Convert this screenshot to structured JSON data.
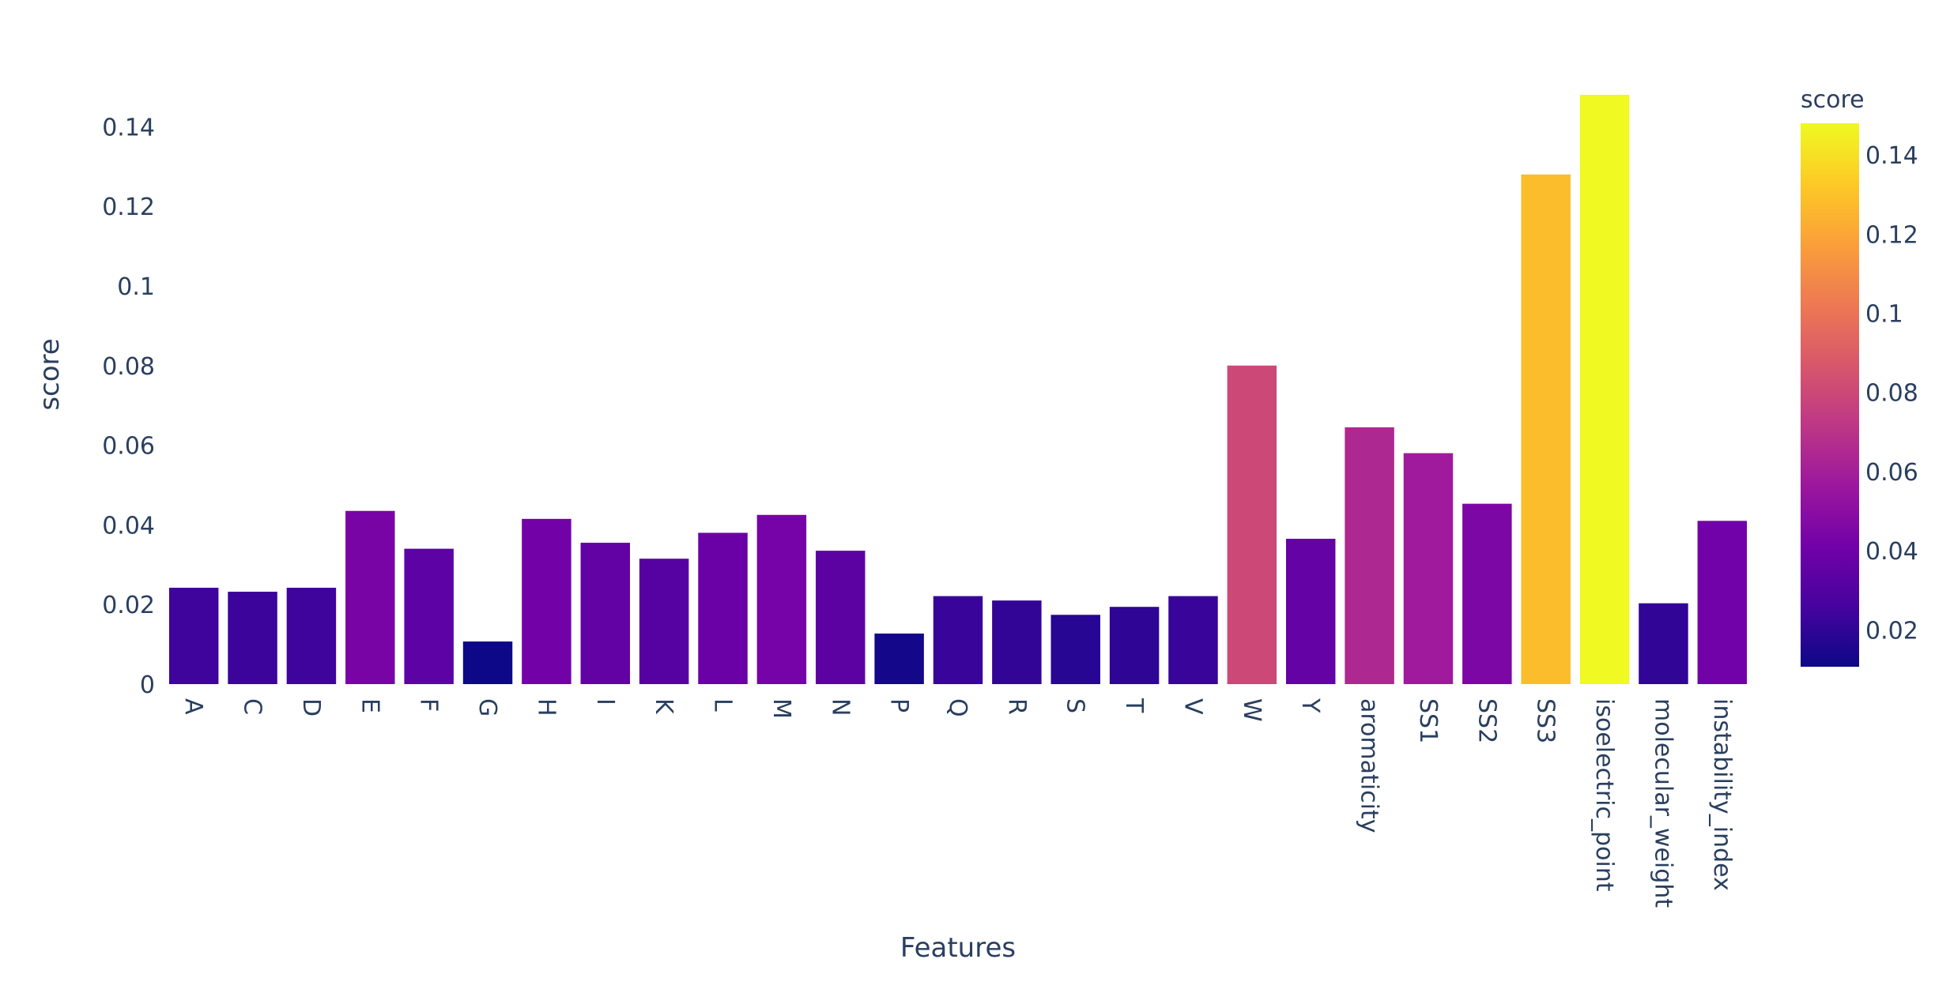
{
  "chart_data": {
    "type": "bar",
    "xlabel": "Features",
    "ylabel": "score",
    "ylim": [
      0,
      0.148
    ],
    "y_ticks": [
      0,
      0.02,
      0.04,
      0.06,
      0.08,
      0.1,
      0.12,
      0.14
    ],
    "y_tick_labels": [
      "0",
      "0.02",
      "0.04",
      "0.06",
      "0.08",
      "0.1",
      "0.12",
      "0.14"
    ],
    "grid": false,
    "categories": [
      "A",
      "C",
      "D",
      "E",
      "F",
      "G",
      "H",
      "I",
      "K",
      "L",
      "M",
      "N",
      "P",
      "Q",
      "R",
      "S",
      "T",
      "V",
      "W",
      "Y",
      "aromaticity",
      "SS1",
      "SS2",
      "SS3",
      "isoelectric_point",
      "molecular_weight",
      "instability_index"
    ],
    "values": [
      0.0242,
      0.0232,
      0.0242,
      0.0435,
      0.034,
      0.0107,
      0.0415,
      0.0355,
      0.0315,
      0.038,
      0.0425,
      0.0335,
      0.0127,
      0.0221,
      0.021,
      0.0174,
      0.0194,
      0.0221,
      0.08,
      0.0365,
      0.0645,
      0.058,
      0.0453,
      0.128,
      0.148,
      0.0203,
      0.041
    ],
    "colorscale": "plasma",
    "colorscale_stops": [
      "#0d0887",
      "#46039f",
      "#7201a8",
      "#9c179e",
      "#bd3786",
      "#d8576b",
      "#ed7953",
      "#fb9f3a",
      "#fdca26",
      "#f0f921"
    ],
    "colorbar": {
      "title": "score",
      "range": [
        0.0107,
        0.148
      ],
      "ticks": [
        0.02,
        0.04,
        0.06,
        0.08,
        0.1,
        0.12,
        0.14
      ],
      "tick_labels": [
        "0.02",
        "0.04",
        "0.06",
        "0.08",
        "0.1",
        "0.12",
        "0.14"
      ]
    }
  }
}
